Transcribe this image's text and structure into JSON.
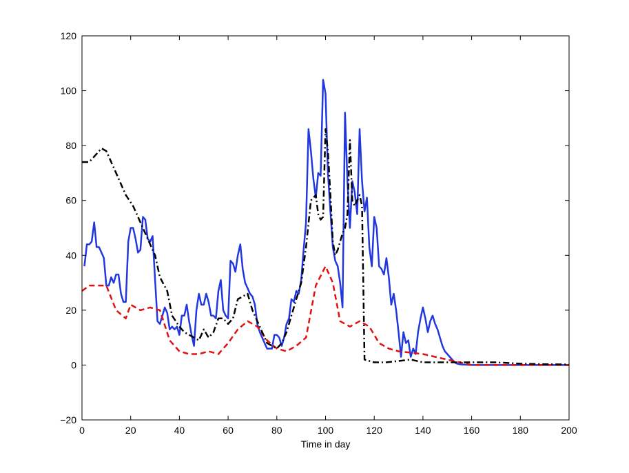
{
  "chart_data": {
    "type": "line",
    "title": "",
    "xlabel": "Time in day",
    "ylabel": "",
    "xlim": [
      0,
      200
    ],
    "ylim": [
      -20,
      120
    ],
    "xticks": [
      0,
      20,
      40,
      60,
      80,
      100,
      120,
      140,
      160,
      180,
      200
    ],
    "yticks": [
      -20,
      0,
      20,
      40,
      60,
      80,
      100,
      120
    ],
    "ytick_labels": [
      "−20",
      "0",
      "20",
      "40",
      "60",
      "80",
      "100",
      "120"
    ],
    "grid": false,
    "legend": "none",
    "series": [
      {
        "color": "#2138e0",
        "style": "solid",
        "width": 2.5,
        "x": [
          1,
          2,
          3,
          4,
          5,
          6,
          7,
          8,
          9,
          10,
          11,
          12,
          13,
          14,
          15,
          16,
          17,
          18,
          19,
          20,
          21,
          22,
          23,
          24,
          25,
          26,
          27,
          28,
          29,
          30,
          31,
          32,
          33,
          34,
          35,
          36,
          37,
          38,
          39,
          40,
          41,
          42,
          43,
          44,
          45,
          46,
          47,
          48,
          49,
          50,
          51,
          52,
          53,
          54,
          55,
          56,
          57,
          58,
          59,
          60,
          61,
          62,
          63,
          64,
          65,
          66,
          67,
          68,
          69,
          70,
          71,
          72,
          73,
          74,
          75,
          76,
          77,
          78,
          79,
          80,
          81,
          82,
          83,
          84,
          85,
          86,
          87,
          88,
          89,
          90,
          91,
          92,
          93,
          94,
          95,
          96,
          97,
          98,
          99,
          100,
          101,
          102,
          103,
          104,
          105,
          106,
          107,
          108,
          109,
          110,
          111,
          112,
          113,
          114,
          115,
          116,
          117,
          118,
          119,
          120,
          121,
          122,
          123,
          124,
          125,
          126,
          127,
          128,
          129,
          130,
          131,
          132,
          133,
          134,
          135,
          136,
          137,
          138,
          139,
          140,
          141,
          142,
          143,
          144,
          145,
          146,
          147,
          148,
          149,
          150,
          151,
          152,
          153,
          154,
          155,
          156,
          158,
          160,
          170,
          180,
          190,
          200
        ],
        "y": [
          36,
          44,
          44,
          45,
          52,
          43,
          43,
          41,
          39,
          29,
          29,
          32,
          30,
          33,
          33,
          26,
          23,
          23,
          45,
          50,
          50,
          46,
          41,
          42,
          54,
          53,
          46,
          45,
          47,
          31,
          16,
          15,
          18,
          21,
          19,
          13,
          14,
          13,
          14,
          11,
          18,
          18,
          22,
          16,
          11,
          7,
          20,
          26,
          22,
          22,
          26,
          23,
          18,
          18,
          17,
          27,
          31,
          20,
          18,
          17,
          38,
          37,
          34,
          40,
          44,
          35,
          30,
          28,
          26,
          25,
          22,
          15,
          12,
          10,
          8,
          6,
          6,
          6,
          11,
          11,
          10,
          7,
          10,
          15,
          17,
          24,
          23,
          27,
          26,
          31,
          42,
          52,
          86,
          78,
          68,
          61,
          70,
          69,
          104,
          99,
          70,
          56,
          43,
          38,
          36,
          30,
          21,
          92,
          67,
          50,
          67,
          63,
          55,
          86,
          67,
          56,
          61,
          43,
          36,
          54,
          50,
          36,
          35,
          33,
          39,
          32,
          22,
          26,
          20,
          12,
          3,
          12,
          8,
          9,
          3,
          6,
          4,
          12,
          17,
          21,
          17,
          12,
          16,
          18,
          15,
          13,
          10,
          7,
          5,
          4,
          3,
          2,
          1,
          0.5,
          0.3,
          0.2,
          0.1,
          0,
          0,
          0,
          0,
          0
        ]
      },
      {
        "color": "#e01010",
        "style": "dashed",
        "width": 2.5,
        "x": [
          0,
          3,
          6,
          10,
          14,
          18,
          20,
          24,
          28,
          32,
          36,
          40,
          44,
          48,
          52,
          56,
          60,
          64,
          68,
          72,
          76,
          80,
          84,
          88,
          92,
          96,
          100,
          103,
          106,
          110,
          114,
          118,
          122,
          126,
          130,
          140,
          150,
          160,
          170,
          180,
          190,
          200
        ],
        "y": [
          27,
          29,
          29,
          29,
          20,
          17,
          22,
          20,
          21,
          20,
          9,
          5,
          4,
          4,
          5,
          4,
          8,
          13,
          16,
          14,
          9,
          6,
          5,
          7,
          10,
          29,
          36,
          30,
          16,
          14,
          16,
          14,
          8,
          6,
          5,
          4,
          2,
          0,
          0,
          0,
          0,
          0
        ]
      },
      {
        "color": "#000000",
        "style": "dashdot",
        "width": 2.5,
        "x": [
          0,
          3,
          5,
          8,
          10,
          14,
          18,
          21,
          24,
          27,
          30,
          32,
          35,
          37,
          40,
          42,
          44,
          46,
          48,
          50,
          52,
          54,
          56,
          58,
          60,
          62,
          64,
          66,
          68,
          70,
          72,
          74,
          76,
          78,
          80,
          82,
          84,
          86,
          88,
          90,
          92,
          94,
          96,
          97,
          98,
          99,
          100,
          101,
          102,
          103,
          104,
          105,
          106,
          107,
          108,
          109,
          110,
          111,
          112,
          113,
          114,
          115,
          116,
          118,
          120,
          125,
          130,
          135,
          140,
          150,
          160,
          170,
          180,
          190,
          200
        ],
        "y": [
          74,
          74,
          76,
          79,
          78,
          70,
          62,
          58,
          52,
          46,
          40,
          32,
          27,
          18,
          14,
          12,
          11,
          10,
          9,
          13,
          10,
          12,
          17,
          17,
          15,
          17,
          24,
          25,
          26,
          20,
          16,
          12,
          8,
          7,
          6,
          8,
          12,
          18,
          24,
          30,
          43,
          60,
          62,
          55,
          53,
          54,
          86,
          78,
          62,
          45,
          40,
          42,
          45,
          48,
          50,
          55,
          82,
          60,
          58,
          60,
          62,
          58,
          2,
          1.5,
          1,
          1,
          1.5,
          2,
          1,
          1,
          1,
          1,
          0.5,
          0.3,
          0.2
        ]
      }
    ]
  }
}
